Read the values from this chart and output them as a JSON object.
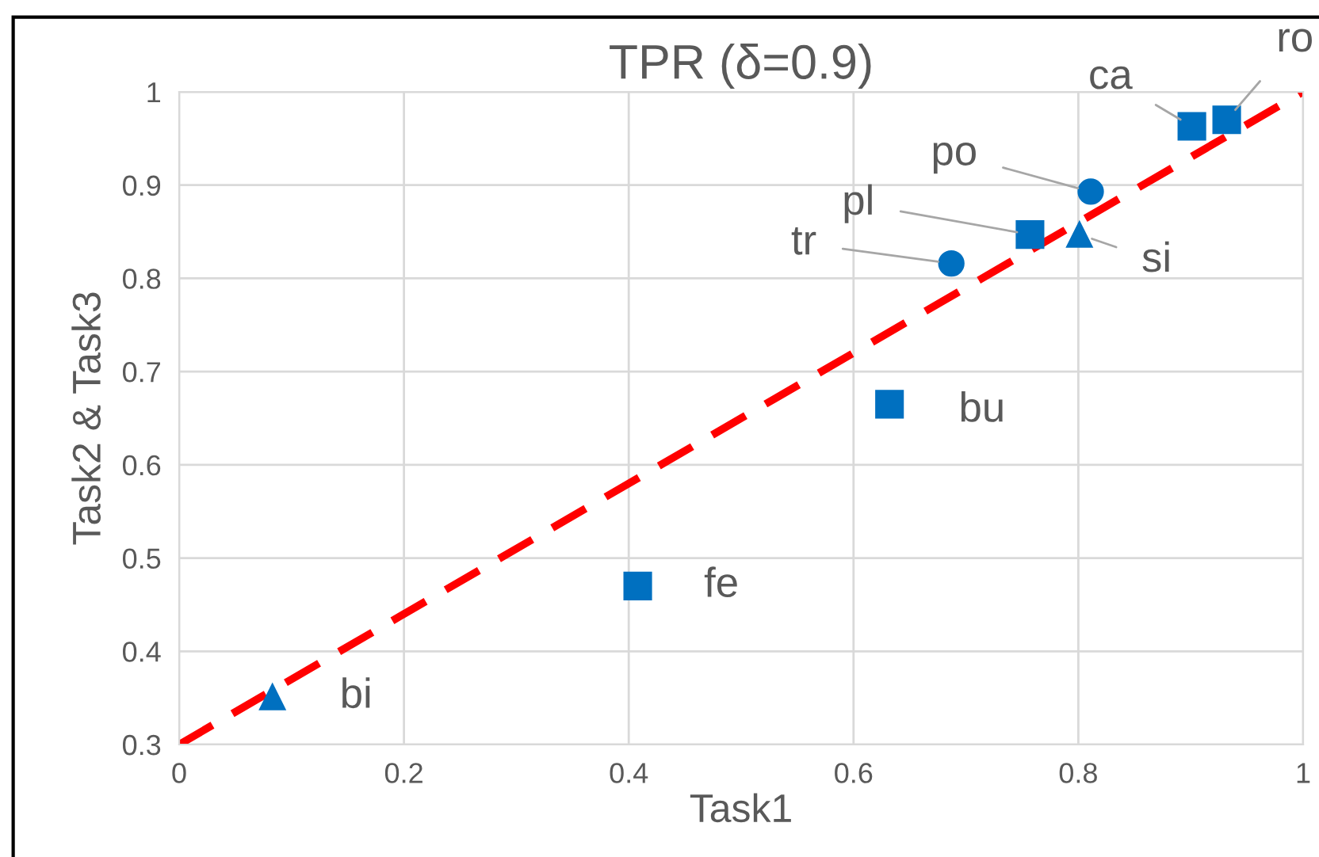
{
  "chart_data": {
    "type": "scatter",
    "title": "TPR (δ=0.9)",
    "xlabel": "Task1",
    "ylabel": "Task2 & Task3",
    "xlim": [
      0,
      1
    ],
    "xticks": [
      0,
      0.2,
      0.4,
      0.6,
      0.8,
      1
    ],
    "ylim": [
      0.3,
      1
    ],
    "yticks": [
      0.3,
      0.4,
      0.5,
      0.6,
      0.7,
      0.8,
      0.9,
      1
    ],
    "grid": true,
    "legend": false,
    "series": [
      {
        "type": "line",
        "x": [
          0,
          1
        ],
        "values": [
          0.3,
          1
        ],
        "color": "#ff0000",
        "line_style": "dashed",
        "marker": "none"
      },
      {
        "name": "bi",
        "x": [
          0.083
        ],
        "values": [
          0.351
        ],
        "color": "#0070c0",
        "marker": "triangle"
      },
      {
        "name": "fe",
        "x": [
          0.408
        ],
        "values": [
          0.47
        ],
        "color": "#0070c0",
        "marker": "square"
      },
      {
        "name": "bu",
        "x": [
          0.632
        ],
        "values": [
          0.665
        ],
        "color": "#0070c0",
        "marker": "square"
      },
      {
        "name": "tr",
        "x": [
          0.687
        ],
        "values": [
          0.816
        ],
        "color": "#0070c0",
        "marker": "circle"
      },
      {
        "name": "pl",
        "x": [
          0.757
        ],
        "values": [
          0.847
        ],
        "color": "#0070c0",
        "marker": "square"
      },
      {
        "name": "si",
        "x": [
          0.801
        ],
        "values": [
          0.847
        ],
        "color": "#0070c0",
        "marker": "triangle"
      },
      {
        "name": "po",
        "x": [
          0.811
        ],
        "values": [
          0.893
        ],
        "color": "#0070c0",
        "marker": "circle"
      },
      {
        "name": "ca",
        "x": [
          0.901
        ],
        "values": [
          0.963
        ],
        "color": "#0070c0",
        "marker": "square"
      },
      {
        "name": "ro",
        "x": [
          0.932
        ],
        "values": [
          0.97
        ],
        "color": "#0070c0",
        "marker": "square"
      }
    ]
  }
}
